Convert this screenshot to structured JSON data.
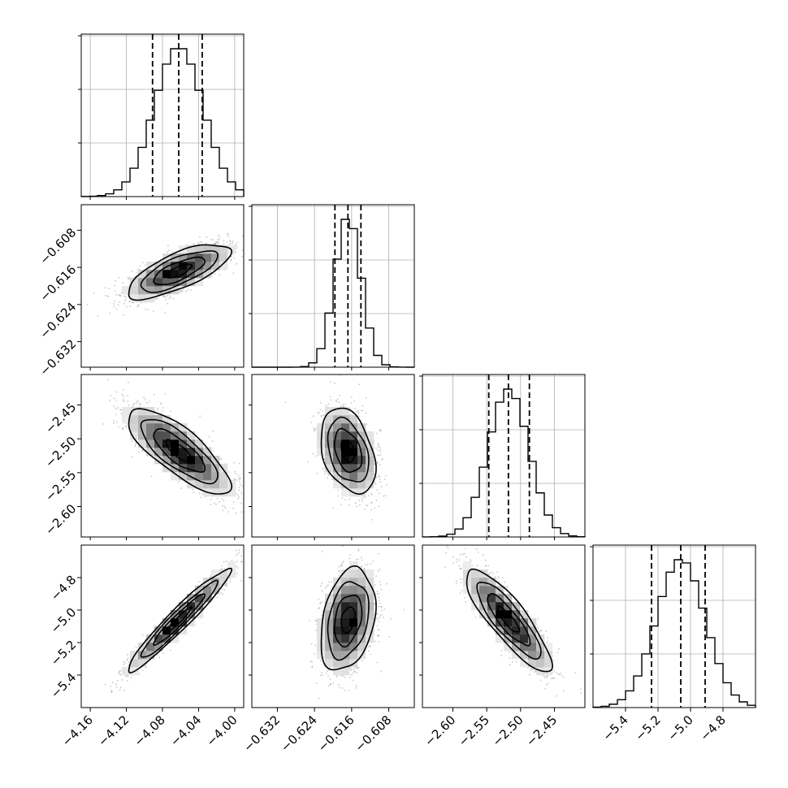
{
  "chart_data": {
    "type": "corner",
    "n_params": 4,
    "params": [
      {
        "label": "",
        "truth_median": -4.062,
        "q16": -4.091,
        "q84": -4.036,
        "std": 0.027,
        "range": [
          -4.17,
          -3.99
        ],
        "ticks": [
          -4.16,
          -4.12,
          -4.08,
          -4.04,
          -4.0
        ],
        "tick_labels": [
          "−4.16",
          "−4.12",
          "−4.08",
          "−4.04",
          "−4.00"
        ]
      },
      {
        "label": "",
        "truth_median": -0.6168,
        "q16": -0.6196,
        "q84": -0.614,
        "std": 0.0028,
        "range": [
          -0.6375,
          -0.6025
        ],
        "ticks": [
          -0.632,
          -0.624,
          -0.616,
          -0.608
        ],
        "tick_labels": [
          "−0.632",
          "−0.624",
          "−0.616",
          "−0.608"
        ]
      },
      {
        "label": "",
        "truth_median": -2.518,
        "q16": -2.547,
        "q84": -2.487,
        "std": 0.03,
        "range": [
          -2.645,
          -2.405
        ],
        "ticks": [
          -2.6,
          -2.55,
          -2.5,
          -2.45
        ],
        "tick_labels": [
          "−2.60",
          "−2.55",
          "−2.50",
          "−2.45"
        ]
      },
      {
        "label": "",
        "truth_median": -5.06,
        "q16": -5.24,
        "q84": -4.91,
        "std": 0.15,
        "range": [
          -5.6,
          -4.6
        ],
        "ticks": [
          -5.4,
          -5.2,
          -5.0,
          -4.8
        ],
        "tick_labels": [
          "−5.4",
          "−5.2",
          "−5.0",
          "−4.8"
        ]
      }
    ],
    "correlations": {
      "1_0": 0.72,
      "2_0": -0.78,
      "2_1": -0.35,
      "3_0": 0.96,
      "3_1": 0.3,
      "3_2": -0.85
    },
    "histogram_bins": 20,
    "quantile_lines": [
      0.16,
      0.5,
      0.84
    ],
    "contour_levels_sigma": [
      0.5,
      1.0,
      1.5,
      2.0
    ],
    "grid": true,
    "colors": {
      "ink": "#000000",
      "grid": "#b0b0b0",
      "scatter": "#9a9a9a"
    }
  }
}
